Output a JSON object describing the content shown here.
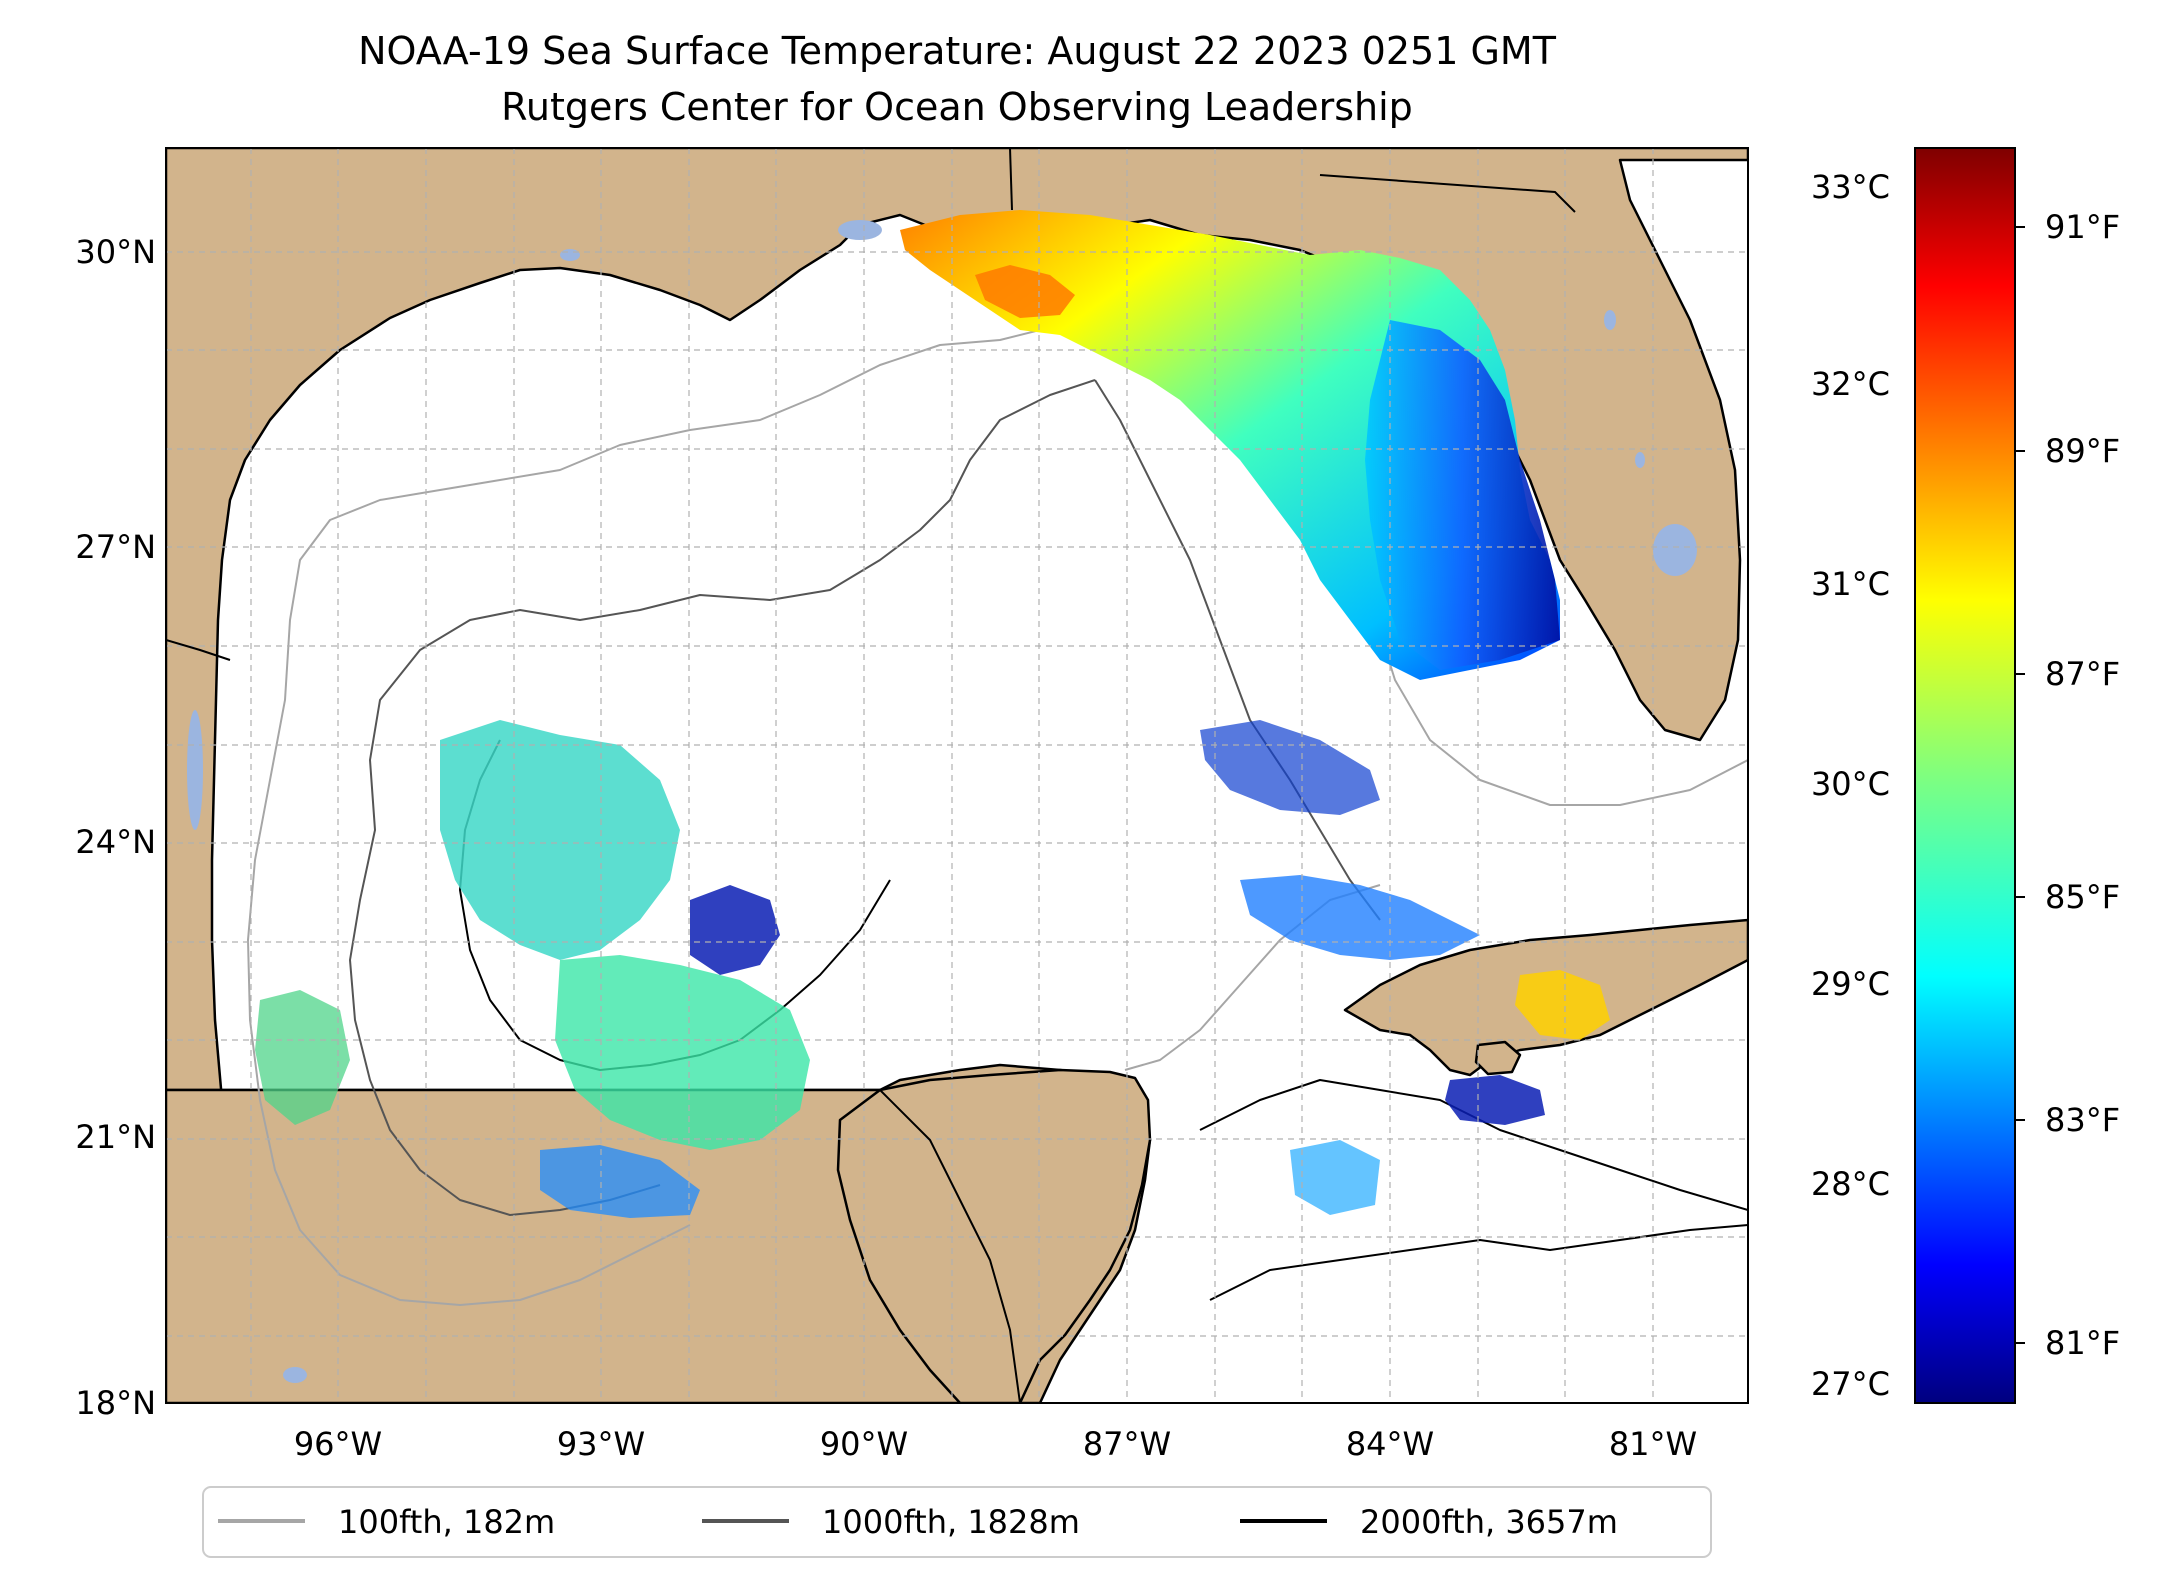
{
  "title": {
    "line1": "NOAA-19 Sea Surface Temperature: August 22 2023 0251 GMT",
    "line2": "Rutgers Center for Ocean Observing Leadership"
  },
  "map": {
    "lat_labels": [
      "30°N",
      "27°N",
      "24°N",
      "21°N",
      "18°N"
    ],
    "lon_labels": [
      "96°W",
      "93°W",
      "90°W",
      "87°W",
      "84°W",
      "81°W"
    ],
    "lat_range": [
      18,
      31
    ],
    "lon_range": [
      -98.2,
      -80.3
    ],
    "colors": {
      "land": "#d2b48c",
      "inland_water": "#9bb5e0",
      "gridline": "#b0b0b0",
      "coastline": "#000000"
    }
  },
  "colorbar": {
    "celsius_labels": [
      "33°C",
      "32°C",
      "31°C",
      "30°C",
      "29°C",
      "28°C",
      "27°C"
    ],
    "fahrenheit_labels": [
      "91°F",
      "89°F",
      "87°F",
      "85°F",
      "83°F",
      "81°F"
    ],
    "colormap": "jet",
    "celsius_range": [
      26.9,
      33.2
    ]
  },
  "legend": {
    "items": [
      {
        "label": "100fth, 182m",
        "color": "#a6a6a6"
      },
      {
        "label": "1000fth, 1828m",
        "color": "#555555"
      },
      {
        "label": "2000fth, 3657m",
        "color": "#000000"
      }
    ]
  }
}
